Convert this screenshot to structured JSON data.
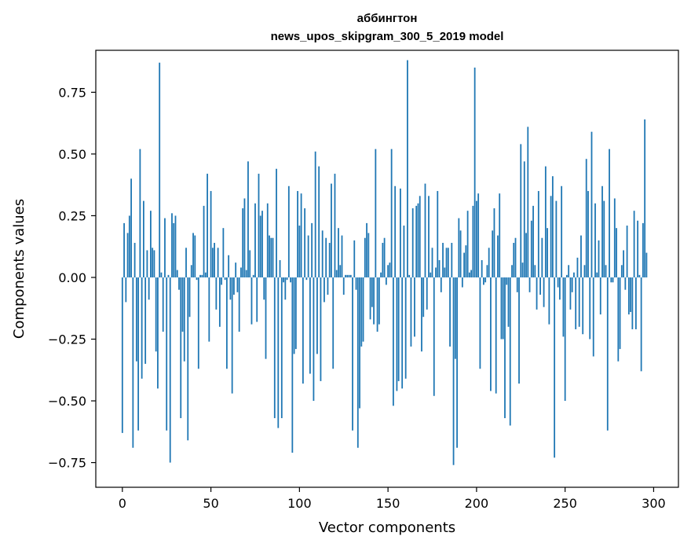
{
  "chart_data": {
    "type": "bar",
    "title_line1": "аббингтон",
    "title_line2": "news_upos_skipgram_300_5_2019 model",
    "xlabel": "Vector components",
    "ylabel": "Components values",
    "xlim": [
      -15,
      314
    ],
    "ylim": [
      -0.85,
      0.92
    ],
    "xticks": [
      0,
      50,
      100,
      150,
      200,
      250,
      300
    ],
    "xtick_labels": [
      "0",
      "50",
      "100",
      "150",
      "200",
      "250",
      "300"
    ],
    "yticks": [
      0.75,
      0.5,
      0.25,
      0.0,
      -0.25,
      -0.5,
      -0.75
    ],
    "ytick_labels": [
      "0.75",
      "0.50",
      "0.25",
      "0.00",
      "−0.25",
      "−0.50",
      "−0.75"
    ],
    "bar_color": "#1f77b4",
    "grid": false,
    "legend": "none",
    "values": [
      -0.63,
      0.22,
      -0.1,
      0.18,
      0.25,
      0.4,
      -0.69,
      0.14,
      -0.34,
      -0.62,
      0.52,
      -0.41,
      0.31,
      -0.35,
      0.11,
      -0.09,
      0.27,
      0.12,
      0.11,
      -0.3,
      -0.45,
      0.87,
      0.02,
      -0.22,
      0.24,
      -0.62,
      0.01,
      -0.75,
      0.26,
      0.22,
      0.25,
      0.03,
      -0.05,
      -0.57,
      -0.22,
      -0.34,
      0.12,
      -0.66,
      -0.16,
      0.05,
      0.18,
      0.17,
      -0.01,
      -0.37,
      0.01,
      0.01,
      0.29,
      0.02,
      0.42,
      -0.26,
      0.35,
      0.12,
      0.14,
      -0.13,
      0.12,
      -0.2,
      -0.03,
      0.2,
      -0.01,
      -0.37,
      0.09,
      -0.09,
      -0.47,
      -0.07,
      0.06,
      -0.06,
      -0.22,
      0.04,
      0.28,
      0.32,
      0.03,
      0.47,
      0.11,
      -0.19,
      0.01,
      0.3,
      -0.18,
      0.42,
      0.25,
      0.27,
      -0.09,
      -0.33,
      0.3,
      0.17,
      0.16,
      0.16,
      -0.57,
      0.44,
      -0.61,
      0.07,
      -0.57,
      -0.02,
      -0.09,
      -0.01,
      0.37,
      -0.02,
      -0.71,
      -0.31,
      -0.29,
      0.35,
      0.21,
      0.34,
      -0.43,
      0.28,
      -0.01,
      0.17,
      -0.39,
      0.22,
      -0.5,
      0.51,
      -0.31,
      0.45,
      -0.42,
      0.19,
      -0.1,
      0.16,
      -0.07,
      0.14,
      0.38,
      -0.37,
      0.42,
      0.03,
      0.2,
      0.05,
      0.17,
      -0.07,
      0.01,
      0.01,
      0.01,
      0.01,
      -0.62,
      0.15,
      -0.05,
      -0.69,
      -0.53,
      -0.28,
      -0.26,
      0.16,
      0.22,
      0.18,
      -0.17,
      -0.12,
      -0.19,
      0.52,
      -0.22,
      -0.19,
      0.02,
      0.14,
      0.16,
      -0.03,
      0.05,
      0.06,
      0.52,
      -0.52,
      0.37,
      -0.46,
      -0.42,
      0.36,
      -0.45,
      0.21,
      -0.41,
      0.88,
      0.01,
      -0.28,
      0.28,
      -0.24,
      0.29,
      0.3,
      0.33,
      -0.3,
      -0.16,
      0.38,
      -0.13,
      0.33,
      0.02,
      0.12,
      -0.48,
      0.04,
      0.35,
      0.07,
      -0.06,
      0.14,
      0.04,
      0.12,
      0.12,
      -0.28,
      0.14,
      -0.76,
      -0.33,
      -0.69,
      0.24,
      0.19,
      -0.04,
      0.1,
      0.13,
      0.27,
      0.02,
      0.03,
      0.29,
      0.85,
      0.31,
      0.34,
      -0.37,
      0.07,
      -0.03,
      -0.02,
      0.05,
      0.12,
      -0.46,
      0.19,
      0.28,
      -0.47,
      0.17,
      0.34,
      -0.25,
      -0.25,
      -0.57,
      -0.03,
      -0.2,
      -0.6,
      0.05,
      0.14,
      0.16,
      -0.06,
      -0.43,
      0.54,
      0.06,
      0.47,
      0.18,
      0.61,
      -0.06,
      0.23,
      0.29,
      0.05,
      -0.13,
      0.35,
      -0.07,
      0.16,
      -0.12,
      0.45,
      0.2,
      -0.19,
      0.33,
      0.41,
      -0.73,
      0.31,
      -0.04,
      -0.09,
      0.37,
      -0.24,
      -0.5,
      0.01,
      0.05,
      -0.13,
      -0.06,
      0.02,
      -0.21,
      0.08,
      -0.2,
      0.17,
      -0.23,
      0.05,
      0.48,
      0.35,
      -0.25,
      0.59,
      -0.32,
      0.3,
      0.02,
      0.15,
      -0.15,
      0.37,
      0.31,
      0.05,
      -0.62,
      0.52,
      -0.02,
      -0.02,
      0.32,
      0.2,
      -0.34,
      -0.29,
      0.05,
      0.11,
      -0.05,
      0.21,
      -0.15,
      -0.14,
      -0.21,
      0.27,
      -0.21,
      0.23,
      0.01,
      -0.38,
      0.22,
      0.64,
      0.1
    ]
  }
}
